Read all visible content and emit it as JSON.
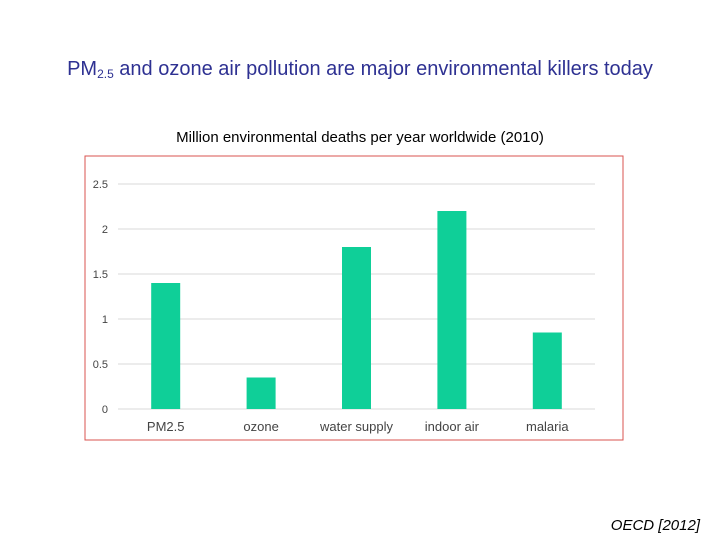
{
  "slide": {
    "title_prefix": "PM",
    "title_sub": "2.5",
    "title_rest": " and ozone air pollution are major environmental killers today",
    "source": "OECD [2012]"
  },
  "colors": {
    "title": "#2e3192",
    "bar": "#0fcf98",
    "frame": "#d9534f",
    "grid": "#d9d9d9",
    "tick_text": "#444444"
  },
  "chart_data": {
    "type": "bar",
    "title": "Million environmental deaths per year worldwide (2010)",
    "xlabel": "",
    "ylabel": "",
    "categories": [
      "PM2.5",
      "ozone",
      "water supply",
      "indoor air",
      "malaria"
    ],
    "values": [
      1.4,
      0.35,
      1.8,
      2.2,
      0.85
    ],
    "ylim": [
      0,
      2.5
    ],
    "yticks": [
      "0",
      "0.5",
      "1",
      "1.5",
      "2",
      "2.5"
    ],
    "ytick_values": [
      0,
      0.5,
      1,
      1.5,
      2,
      2.5
    ],
    "grid": true,
    "legend": "none"
  }
}
